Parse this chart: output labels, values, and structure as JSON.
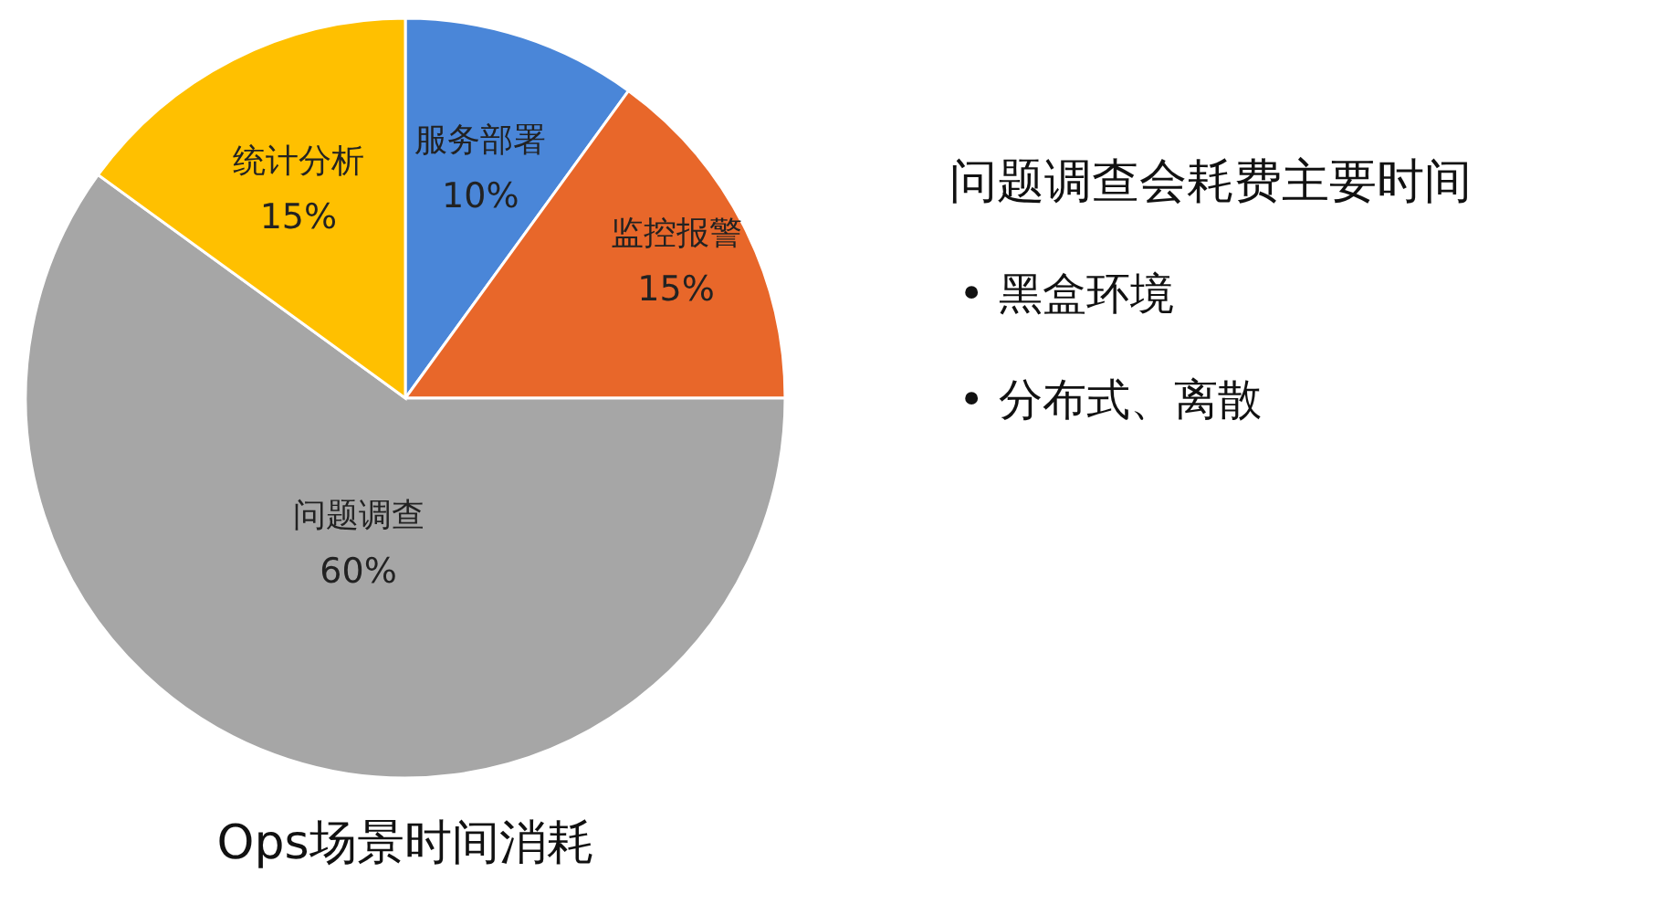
{
  "chart_data": {
    "type": "pie",
    "title": "Ops场景时间消耗",
    "categories": [
      "服务部署",
      "监控报警",
      "问题调查",
      "统计分析"
    ],
    "values": [
      10,
      15,
      60,
      15
    ],
    "value_labels": [
      "10%",
      "15%",
      "60%",
      "15%"
    ],
    "colors": [
      "#4a86d8",
      "#e8672a",
      "#a6a6a6",
      "#ffc000"
    ],
    "annotations": [
      "问题调查会耗费主要时间",
      "•   黑盒环境",
      "•   分布式、离散"
    ]
  }
}
